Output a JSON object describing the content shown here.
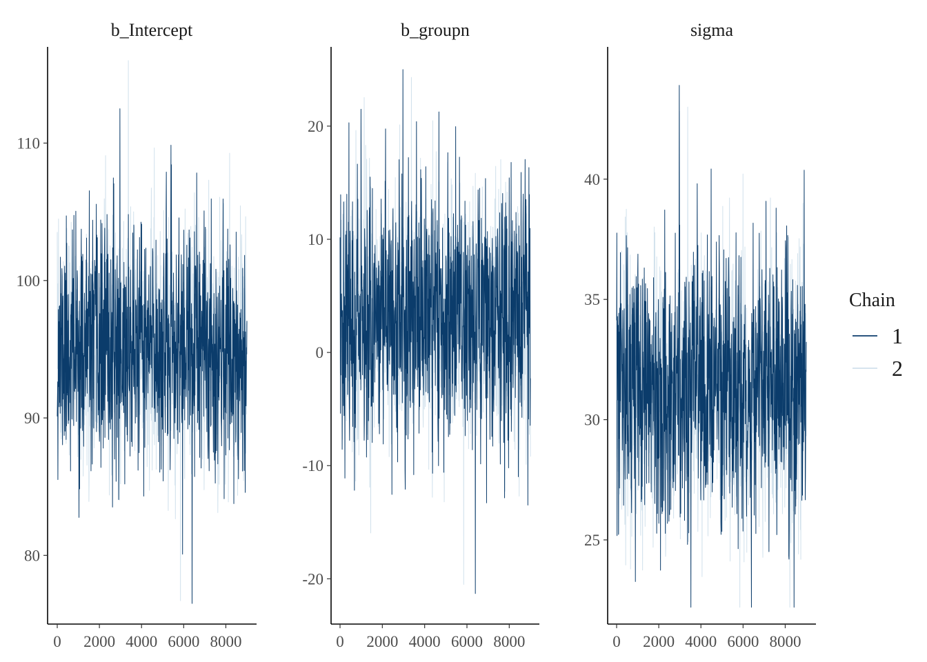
{
  "chart_data": {
    "type": "line",
    "colors": {
      "chain1": "#0b3c6b",
      "chain2": "#d1e1ec"
    },
    "legend": {
      "title": "Chain",
      "placement": "right",
      "entries": [
        "1",
        "2"
      ]
    },
    "grid": false,
    "panels": [
      {
        "title": "b_Intercept",
        "xlim": [
          0,
          9000
        ],
        "ylim": [
          75,
          117
        ],
        "x_ticks": [
          0,
          2000,
          4000,
          6000,
          8000
        ],
        "y_ticks": [
          80,
          90,
          100,
          110
        ],
        "series": [
          {
            "name": "1",
            "center": 95.0,
            "sd": 4.3,
            "min": 76.5,
            "max": 112.5,
            "seed": 11
          },
          {
            "name": "2",
            "center": 95.0,
            "sd": 4.3,
            "min": 76.7,
            "max": 116.0,
            "seed": 23
          }
        ]
      },
      {
        "title": "b_groupn",
        "xlim": [
          0,
          9000
        ],
        "ylim": [
          -24,
          27
        ],
        "x_ticks": [
          0,
          2000,
          4000,
          6000,
          8000
        ],
        "y_ticks": [
          -20,
          -10,
          0,
          10,
          20
        ],
        "series": [
          {
            "name": "1",
            "center": 3.5,
            "sd": 5.8,
            "min": -21.3,
            "max": 25.0,
            "seed": 37
          },
          {
            "name": "2",
            "center": 3.5,
            "sd": 5.8,
            "min": -20.5,
            "max": 24.3,
            "seed": 41
          }
        ]
      },
      {
        "title": "sigma",
        "xlim": [
          0,
          9000
        ],
        "ylim": [
          21.5,
          45.5
        ],
        "x_ticks": [
          0,
          2000,
          4000,
          6000,
          8000
        ],
        "y_ticks": [
          25,
          30,
          35,
          40
        ],
        "series": [
          {
            "name": "1",
            "center": 31.3,
            "sd": 2.8,
            "min": 22.2,
            "max": 43.9,
            "seed": 53
          },
          {
            "name": "2",
            "center": 31.3,
            "sd": 2.8,
            "min": 22.2,
            "max": 43.0,
            "seed": 67
          }
        ]
      }
    ]
  }
}
